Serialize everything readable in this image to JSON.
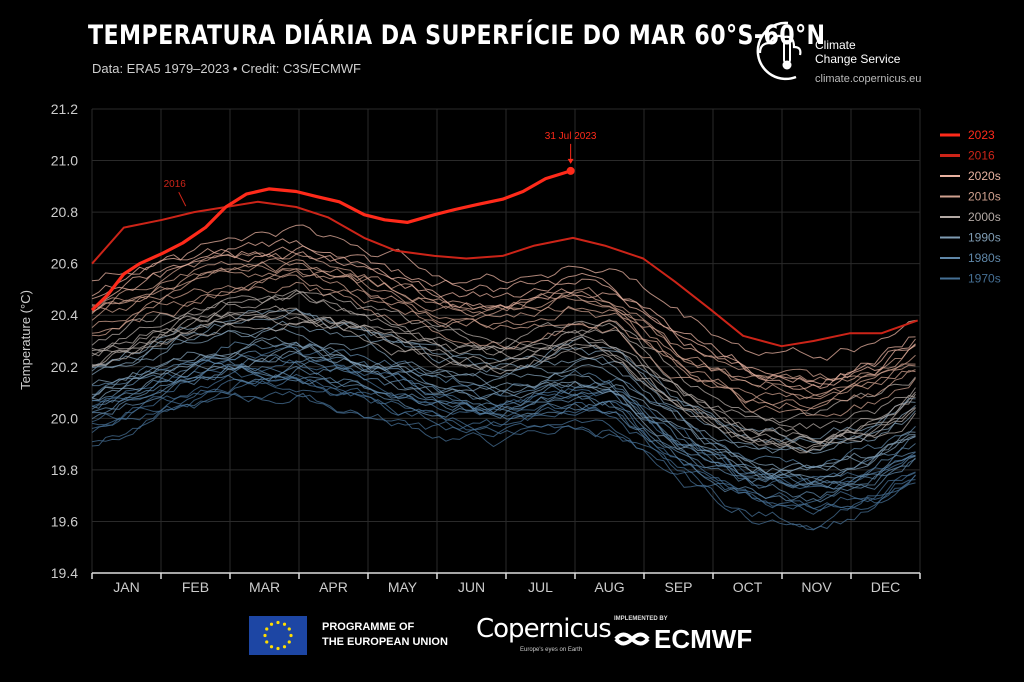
{
  "header": {
    "title": "TEMPERATURA DIÁRIA DA SUPERFÍCIE DO MAR 60°S-60°N",
    "subtitle": "Data: ERA5 1979–2023 • Credit: C3S/ECMWF"
  },
  "logo": {
    "line1": "Climate",
    "line2": "Change Service",
    "url": "climate.copernicus.eu"
  },
  "footer": {
    "eu_text": "PROGRAMME OF\nTHE EUROPEAN UNION",
    "copernicus": "Copernicus",
    "copernicus_tagline": "Europe's eyes on Earth",
    "implemented_by": "IMPLEMENTED BY",
    "ecmwf": "ECMWF"
  },
  "chart_data": {
    "type": "line",
    "title": "TEMPERATURA DIÁRIA DA SUPERFÍCIE DO MAR 60°S-60°N",
    "ylabel": "Temperature (°C)",
    "xlabel": "",
    "ylim": [
      19.4,
      21.2
    ],
    "yticks": [
      "19.4",
      "19.6",
      "19.8",
      "20.0",
      "20.2",
      "20.4",
      "20.6",
      "20.8",
      "21.0",
      "21.2"
    ],
    "categories": [
      "JAN",
      "FEB",
      "MAR",
      "APR",
      "MAY",
      "JUN",
      "JUL",
      "AUG",
      "SEP",
      "OCT",
      "NOV",
      "DEC"
    ],
    "grid": true,
    "legend_position": "right",
    "legend": [
      {
        "label": "2023",
        "color": "#ff2a1a"
      },
      {
        "label": "2016",
        "color": "#cc2418"
      },
      {
        "label": "2020s",
        "color": "#e8b2a0"
      },
      {
        "label": "2010s",
        "color": "#cfa08e"
      },
      {
        "label": "2000s",
        "color": "#b3a9a4"
      },
      {
        "label": "1990s",
        "color": "#7f9cb3"
      },
      {
        "label": "1980s",
        "color": "#5f87a8"
      },
      {
        "label": "1970s",
        "color": "#456f94"
      }
    ],
    "annotations": [
      {
        "text": "31 Jul 2023",
        "x": "2023-07-31",
        "y": 20.96
      },
      {
        "text": "2016",
        "x": "2016-02-10",
        "y": 20.85
      }
    ],
    "series": [
      {
        "name": "2023",
        "color": "#ff2a1a",
        "x": [
          "Jan 1",
          "Jan 8",
          "Jan 15",
          "Jan 22",
          "Feb 1",
          "Feb 10",
          "Feb 20",
          "Mar 1",
          "Mar 10",
          "Mar 20",
          "Apr 1",
          "Apr 10",
          "Apr 20",
          "May 1",
          "May 10",
          "May 20",
          "Jun 1",
          "Jun 10",
          "Jun 20",
          "Jul 1",
          "Jul 10",
          "Jul 20",
          "Jul 31"
        ],
        "values": [
          20.42,
          20.48,
          20.56,
          20.6,
          20.64,
          20.68,
          20.74,
          20.82,
          20.87,
          20.89,
          20.88,
          20.86,
          20.84,
          20.79,
          20.77,
          20.76,
          20.79,
          20.81,
          20.83,
          20.85,
          20.88,
          20.93,
          20.96
        ]
      },
      {
        "name": "2016",
        "color": "#cc2418",
        "x": [
          "Jan 1",
          "Jan 15",
          "Feb 1",
          "Feb 15",
          "Mar 1",
          "Mar 15",
          "Apr 1",
          "Apr 15",
          "May 1",
          "May 15",
          "Jun 1",
          "Jun 15",
          "Jul 1",
          "Jul 15",
          "Aug 1",
          "Aug 15",
          "Sep 1",
          "Sep 15",
          "Oct 1",
          "Oct 15",
          "Nov 1",
          "Nov 15",
          "Dec 1",
          "Dec 15",
          "Dec 31"
        ],
        "values": [
          20.6,
          20.74,
          20.77,
          20.8,
          20.82,
          20.84,
          20.82,
          20.78,
          20.7,
          20.65,
          20.63,
          20.62,
          20.63,
          20.67,
          20.7,
          20.67,
          20.62,
          20.53,
          20.42,
          20.32,
          20.28,
          20.3,
          20.33,
          20.33,
          20.38
        ]
      }
    ]
  }
}
